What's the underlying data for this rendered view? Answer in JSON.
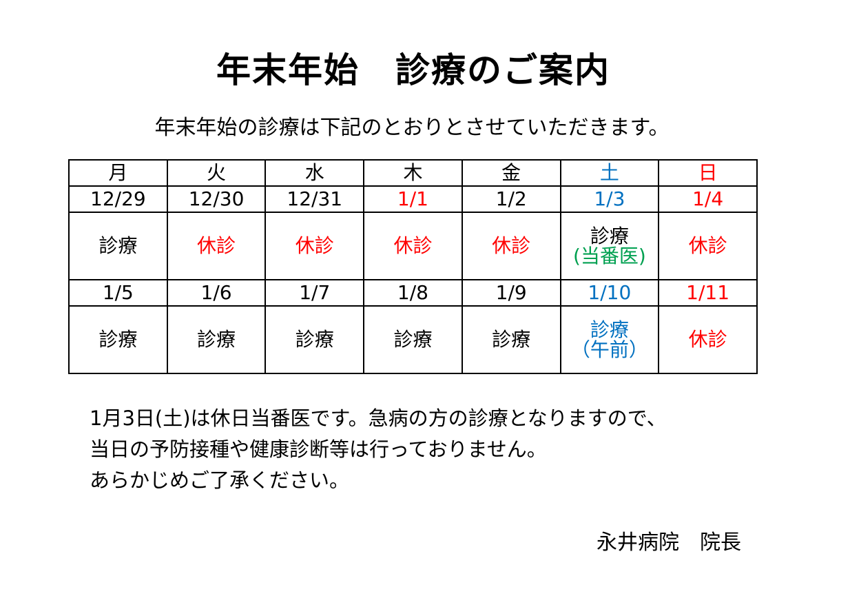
{
  "title": "年末年始　診療のご案内",
  "subtitle": "年末年始の診療は下記のとおりとさせていただきます。",
  "colors": {
    "black": "#000000",
    "red": "#ff0000",
    "blue": "#0070c0",
    "green": "#00a050"
  },
  "table": {
    "weekdays": [
      {
        "label": "月",
        "color": "black"
      },
      {
        "label": "火",
        "color": "black"
      },
      {
        "label": "水",
        "color": "black"
      },
      {
        "label": "木",
        "color": "black"
      },
      {
        "label": "金",
        "color": "black"
      },
      {
        "label": "土",
        "color": "blue"
      },
      {
        "label": "日",
        "color": "red"
      }
    ],
    "week1": {
      "dates": [
        {
          "label": "12/29",
          "color": "black"
        },
        {
          "label": "12/30",
          "color": "black"
        },
        {
          "label": "12/31",
          "color": "black"
        },
        {
          "label": "1/1",
          "color": "red"
        },
        {
          "label": "1/2",
          "color": "black"
        },
        {
          "label": "1/3",
          "color": "blue"
        },
        {
          "label": "1/4",
          "color": "red"
        }
      ],
      "status": [
        {
          "text": "診療",
          "color": "black"
        },
        {
          "text": "休診",
          "color": "red"
        },
        {
          "text": "休診",
          "color": "red"
        },
        {
          "text": "休診",
          "color": "red"
        },
        {
          "text": "休診",
          "color": "red"
        },
        {
          "text": "診療",
          "sub": "(当番医)",
          "color": "black",
          "sub_color": "green"
        },
        {
          "text": "休診",
          "color": "red"
        }
      ]
    },
    "week2": {
      "dates": [
        {
          "label": "1/5",
          "color": "black"
        },
        {
          "label": "1/6",
          "color": "black"
        },
        {
          "label": "1/7",
          "color": "black"
        },
        {
          "label": "1/8",
          "color": "black"
        },
        {
          "label": "1/9",
          "color": "black"
        },
        {
          "label": "1/10",
          "color": "blue"
        },
        {
          "label": "1/11",
          "color": "red"
        }
      ],
      "status": [
        {
          "text": "診療",
          "color": "black"
        },
        {
          "text": "診療",
          "color": "black"
        },
        {
          "text": "診療",
          "color": "black"
        },
        {
          "text": "診療",
          "color": "black"
        },
        {
          "text": "診療",
          "color": "black"
        },
        {
          "text": "診療",
          "sub": "（午前）",
          "color": "blue",
          "sub_color": "blue"
        },
        {
          "text": "休診",
          "color": "red"
        }
      ]
    }
  },
  "notice": [
    "1月3日(土)は休日当番医です。急病の方の診療となりますので、",
    "当日の予防接種や健康診断等は行っておりません。",
    "あらかじめご了承ください。"
  ],
  "signature": "永井病院　院長"
}
